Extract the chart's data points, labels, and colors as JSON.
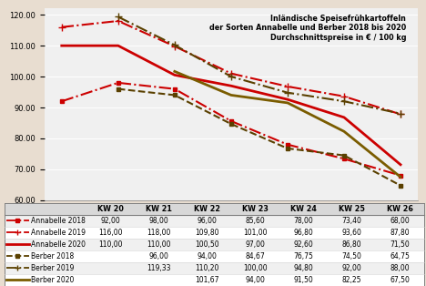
{
  "title": "Inländische Speisefrühkartoffeln\nder Sorten Annabelle und Berber 2018 bis 2020\nDurchschnittspreise in € / 100 kg",
  "x_labels": [
    "KW 20",
    "KW 21",
    "KW 22",
    "KW 23",
    "KW 24",
    "KW 25",
    "KW 26"
  ],
  "ylim": [
    60,
    122
  ],
  "yticks": [
    60.0,
    70.0,
    80.0,
    90.0,
    100.0,
    110.0,
    120.0
  ],
  "series": [
    {
      "name": "Annabelle 2018",
      "values": [
        92.0,
        98.0,
        96.0,
        85.6,
        78.0,
        73.4,
        68.0
      ],
      "color": "#cc0000",
      "linestyle": "dashdot",
      "linewidth": 1.5,
      "marker": "s",
      "markersize": 3
    },
    {
      "name": "Annabelle 2019",
      "values": [
        116.0,
        118.0,
        109.8,
        101.0,
        96.8,
        93.6,
        87.8
      ],
      "color": "#cc0000",
      "linestyle": "dashdot",
      "linewidth": 1.5,
      "marker": "+",
      "markersize": 6
    },
    {
      "name": "Annabelle 2020",
      "values": [
        110.0,
        110.0,
        100.5,
        97.0,
        92.6,
        86.8,
        71.5
      ],
      "color": "#cc0000",
      "linestyle": "solid",
      "linewidth": 2.0,
      "marker": null,
      "markersize": 0
    },
    {
      "name": "Berber 2018",
      "values": [
        null,
        96.0,
        94.0,
        84.67,
        76.75,
        74.5,
        64.75
      ],
      "color": "#5a4000",
      "linestyle": "dashed",
      "linewidth": 1.5,
      "marker": "s",
      "markersize": 3
    },
    {
      "name": "Berber 2019",
      "values": [
        null,
        119.33,
        110.2,
        100.0,
        94.8,
        92.0,
        88.0
      ],
      "color": "#5a4000",
      "linestyle": "dashdot",
      "linewidth": 1.5,
      "marker": "+",
      "markersize": 6
    },
    {
      "name": "Berber 2020",
      "values": [
        null,
        null,
        101.67,
        94.0,
        91.5,
        82.25,
        67.5
      ],
      "color": "#7a5c00",
      "linestyle": "solid",
      "linewidth": 2.0,
      "marker": null,
      "markersize": 0
    }
  ],
  "legend_names": [
    "Annabelle 2018",
    "Annabelle 2019",
    "Annabelle 2020",
    "Berber 2018",
    "Berber 2019",
    "Berber 2020"
  ],
  "series_colors": [
    "#cc0000",
    "#cc0000",
    "#cc0000",
    "#5a4000",
    "#5a4000",
    "#7a5c00"
  ],
  "series_linestyles_label": [
    "dashdot_sq",
    "dashdot_plus",
    "solid",
    "dashed_sq",
    "dashdot_plus",
    "solid"
  ],
  "table_values": [
    [
      "92,00",
      "98,00",
      "96,00",
      "85,60",
      "78,00",
      "73,40",
      "68,00"
    ],
    [
      "116,00",
      "118,00",
      "109,80",
      "101,00",
      "96,80",
      "93,60",
      "87,80"
    ],
    [
      "110,00",
      "110,00",
      "100,50",
      "97,00",
      "92,60",
      "86,80",
      "71,50"
    ],
    [
      "",
      "96,00",
      "94,00",
      "84,67",
      "76,75",
      "74,50",
      "64,75"
    ],
    [
      "",
      "119,33",
      "110,20",
      "100,00",
      "94,80",
      "92,00",
      "88,00"
    ],
    [
      "",
      "",
      "101,67",
      "94,00",
      "91,50",
      "82,25",
      "67,50"
    ]
  ],
  "background_color": "#e8ddd0",
  "row_colors": [
    "#f0f0f0",
    "#ffffff",
    "#f0f0f0",
    "#ffffff",
    "#f0f0f0",
    "#ffffff"
  ],
  "header_row_color": "#d8d8d8"
}
